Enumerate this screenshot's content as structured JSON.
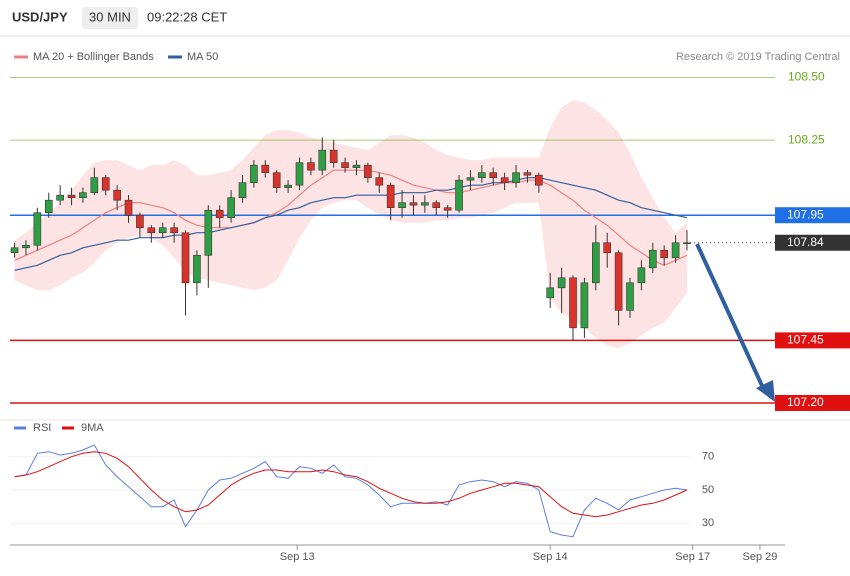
{
  "header": {
    "symbol": "USD/JPY",
    "interval": "30 MIN",
    "time": "09:22:28 CET"
  },
  "chart_data": [
    {
      "type": "candlestick",
      "source": "Research © 2019 Trading Central",
      "ylim": [
        107.14,
        108.55
      ],
      "up_color": "#2f9e44",
      "down_color": "#d9342b",
      "band_color": "#fde3e3",
      "open": [
        107.8,
        107.82,
        107.83,
        107.96,
        108.01,
        108.03,
        108.02,
        108.04,
        108.1,
        108.05,
        108.01,
        107.95,
        107.9,
        107.88,
        107.9,
        107.88,
        107.68,
        107.79,
        107.97,
        107.94,
        108.02,
        108.08,
        108.15,
        108.12,
        108.06,
        108.07,
        108.16,
        108.13,
        108.21,
        108.16,
        108.14,
        108.15,
        108.1,
        108.07,
        107.98,
        108.0,
        107.99,
        108.0,
        107.98,
        107.97,
        108.09,
        108.1,
        108.12,
        108.1,
        108.08,
        108.12,
        108.11,
        107.62,
        107.66,
        107.7,
        107.5,
        107.68,
        107.84,
        107.8,
        107.57,
        107.68,
        107.74,
        107.81,
        107.78,
        107.84
      ],
      "high": [
        107.84,
        107.85,
        107.98,
        108.04,
        108.07,
        108.06,
        108.06,
        108.14,
        108.11,
        108.07,
        108.03,
        107.96,
        107.91,
        107.92,
        107.92,
        107.89,
        107.81,
        107.99,
        107.99,
        108.05,
        108.11,
        108.17,
        108.17,
        108.13,
        108.09,
        108.18,
        108.18,
        108.26,
        108.25,
        108.18,
        108.17,
        108.16,
        108.12,
        108.08,
        108.05,
        108.03,
        108.03,
        108.01,
        107.99,
        108.11,
        108.13,
        108.15,
        108.14,
        108.12,
        108.15,
        108.13,
        108.12,
        107.72,
        107.74,
        107.71,
        107.7,
        107.91,
        107.88,
        107.81,
        107.7,
        107.77,
        107.84,
        107.83,
        107.87,
        107.89
      ],
      "low": [
        107.78,
        107.79,
        107.81,
        107.94,
        107.99,
        107.99,
        108.0,
        108.03,
        108.03,
        107.97,
        107.92,
        107.86,
        107.84,
        107.86,
        107.84,
        107.55,
        107.63,
        107.66,
        107.9,
        107.92,
        108.0,
        108.06,
        108.1,
        108.04,
        108.04,
        108.05,
        108.11,
        108.11,
        108.14,
        108.12,
        108.11,
        108.08,
        108.04,
        107.93,
        107.94,
        107.95,
        107.96,
        107.95,
        107.94,
        107.96,
        108.05,
        108.08,
        108.07,
        108.05,
        108.06,
        108.08,
        108.04,
        107.58,
        107.56,
        107.45,
        107.46,
        107.65,
        107.74,
        107.51,
        107.54,
        107.65,
        107.72,
        107.75,
        107.76,
        107.81
      ],
      "close": [
        107.82,
        107.83,
        107.96,
        108.01,
        108.03,
        108.02,
        108.04,
        108.1,
        108.05,
        108.01,
        107.95,
        107.9,
        107.88,
        107.9,
        107.88,
        107.68,
        107.79,
        107.97,
        107.94,
        108.02,
        108.08,
        108.15,
        108.12,
        108.06,
        108.07,
        108.16,
        108.13,
        108.21,
        108.16,
        108.14,
        108.15,
        108.1,
        108.07,
        107.98,
        108.0,
        107.99,
        108.0,
        107.98,
        107.97,
        108.09,
        108.1,
        108.12,
        108.1,
        108.08,
        108.12,
        108.11,
        108.07,
        107.66,
        107.7,
        107.5,
        107.68,
        107.84,
        107.8,
        107.57,
        107.68,
        107.74,
        107.81,
        107.78,
        107.84,
        107.84
      ],
      "series": [
        {
          "name": "MA 20 + Bollinger Bands",
          "color": "#f08080",
          "values": [
            107.77,
            107.79,
            107.81,
            107.83,
            107.85,
            107.87,
            107.9,
            107.93,
            107.96,
            107.98,
            108.0,
            108.0,
            107.99,
            107.98,
            107.96,
            107.93,
            107.91,
            107.9,
            107.9,
            107.9,
            107.91,
            107.92,
            107.94,
            107.96,
            107.99,
            108.03,
            108.07,
            108.1,
            108.13,
            108.13,
            108.13,
            108.13,
            108.12,
            108.11,
            108.09,
            108.07,
            108.06,
            108.05,
            108.04,
            108.04,
            108.05,
            108.06,
            108.07,
            108.08,
            108.08,
            108.09,
            108.09,
            108.07,
            108.04,
            108.01,
            107.97,
            107.94,
            107.91,
            107.87,
            107.83,
            107.8,
            107.77,
            107.75,
            107.77,
            107.79
          ],
          "upper": [
            107.85,
            107.88,
            107.92,
            107.96,
            108.0,
            108.05,
            108.11,
            108.16,
            108.17,
            108.17,
            108.15,
            108.13,
            108.15,
            108.15,
            108.17,
            108.15,
            108.11,
            108.11,
            108.12,
            108.13,
            108.17,
            108.22,
            108.27,
            108.29,
            108.29,
            108.28,
            108.26,
            108.25,
            108.24,
            108.23,
            108.22,
            108.21,
            108.24,
            108.27,
            108.27,
            108.26,
            108.24,
            108.21,
            108.19,
            108.18,
            108.17,
            108.17,
            108.18,
            108.18,
            108.18,
            108.18,
            108.18,
            108.3,
            108.38,
            108.41,
            108.4,
            108.37,
            108.33,
            108.28,
            108.2,
            108.1,
            108.02,
            107.94,
            107.88,
            107.92
          ],
          "lower": [
            107.69,
            107.67,
            107.65,
            107.65,
            107.67,
            107.7,
            107.72,
            107.76,
            107.81,
            107.84,
            107.86,
            107.87,
            107.86,
            107.83,
            107.78,
            107.72,
            107.7,
            107.69,
            107.68,
            107.67,
            107.66,
            107.65,
            107.66,
            107.69,
            107.77,
            107.86,
            107.93,
            107.98,
            108.0,
            108.01,
            108.01,
            107.98,
            107.95,
            107.93,
            107.92,
            107.92,
            107.92,
            107.93,
            107.93,
            107.94,
            107.94,
            107.95,
            107.96,
            107.98,
            108.0,
            108.0,
            108.0,
            107.62,
            107.56,
            107.53,
            107.5,
            107.46,
            107.43,
            107.42,
            107.44,
            107.47,
            107.5,
            107.52,
            107.58,
            107.64
          ]
        },
        {
          "name": "MA 50",
          "color": "#2f5f9e",
          "values": [
            107.73,
            107.74,
            107.75,
            107.77,
            107.79,
            107.8,
            107.82,
            107.83,
            107.84,
            107.85,
            107.85,
            107.86,
            107.86,
            107.86,
            107.87,
            107.87,
            107.88,
            107.88,
            107.89,
            107.9,
            107.91,
            107.92,
            107.94,
            107.95,
            107.97,
            107.98,
            108.0,
            108.01,
            108.02,
            108.02,
            108.03,
            108.03,
            108.03,
            108.03,
            108.04,
            108.04,
            108.04,
            108.05,
            108.05,
            108.06,
            108.07,
            108.07,
            108.08,
            108.08,
            108.09,
            108.1,
            108.1,
            108.09,
            108.08,
            108.07,
            108.06,
            108.05,
            108.03,
            108.01,
            108.0,
            107.98,
            107.97,
            107.96,
            107.95,
            107.94
          ]
        }
      ],
      "levels": [
        {
          "value": 108.5,
          "label": "108.50",
          "color": "#6aaa1e",
          "style": "text"
        },
        {
          "value": 108.25,
          "label": "108.25",
          "color": "#6aaa1e",
          "style": "text"
        },
        {
          "value": 107.95,
          "label": "107.95",
          "color": "#1f6fe5",
          "style": "box"
        },
        {
          "value": 107.84,
          "label": "107.84",
          "color": "#333333",
          "style": "dotted-box"
        },
        {
          "value": 107.45,
          "label": "107.45",
          "color": "#e01010",
          "style": "box"
        },
        {
          "value": 107.2,
          "label": "107.20",
          "color": "#e01010",
          "style": "box"
        }
      ]
    },
    {
      "type": "line",
      "ylim": [
        20,
        80
      ],
      "yticks": [
        30,
        50,
        70
      ],
      "xlim": [
        -0.4,
        67.6
      ],
      "xticks": [
        {
          "value": 24.8,
          "label": "Sep 13"
        },
        {
          "value": 47,
          "label": "Sep 14"
        },
        {
          "value": 59.5,
          "label": "Sep 17"
        },
        {
          "value": 65.4,
          "label": "Sep 29"
        }
      ],
      "series": [
        {
          "name": "RSI",
          "color": "#5b7fe0",
          "values": [
            58,
            59,
            72,
            73,
            71,
            72,
            74,
            77,
            65,
            58,
            52,
            46,
            40,
            40,
            44,
            28,
            38,
            50,
            56,
            57,
            60,
            63,
            67,
            58,
            57,
            64,
            63,
            60,
            65,
            58,
            57,
            53,
            47,
            40,
            42,
            42,
            42,
            43,
            41,
            53,
            55,
            56,
            55,
            52,
            55,
            54,
            50,
            25,
            23,
            22,
            38,
            45,
            42,
            38,
            44,
            46,
            48,
            50,
            51,
            50
          ]
        },
        {
          "name": "9MA",
          "color": "#e01010",
          "values": [
            58,
            59,
            61,
            64,
            67,
            70,
            72,
            73,
            72,
            69,
            64,
            57,
            50,
            44,
            40,
            37,
            38,
            41,
            47,
            53,
            57,
            60,
            62,
            62,
            61,
            61,
            61,
            62,
            61,
            59,
            58,
            55,
            51,
            48,
            45,
            43,
            42,
            42,
            43,
            45,
            48,
            50,
            52,
            54,
            54,
            53,
            52,
            46,
            40,
            36,
            35,
            34,
            35,
            37,
            39,
            41,
            42,
            44,
            47,
            50
          ]
        }
      ]
    }
  ]
}
